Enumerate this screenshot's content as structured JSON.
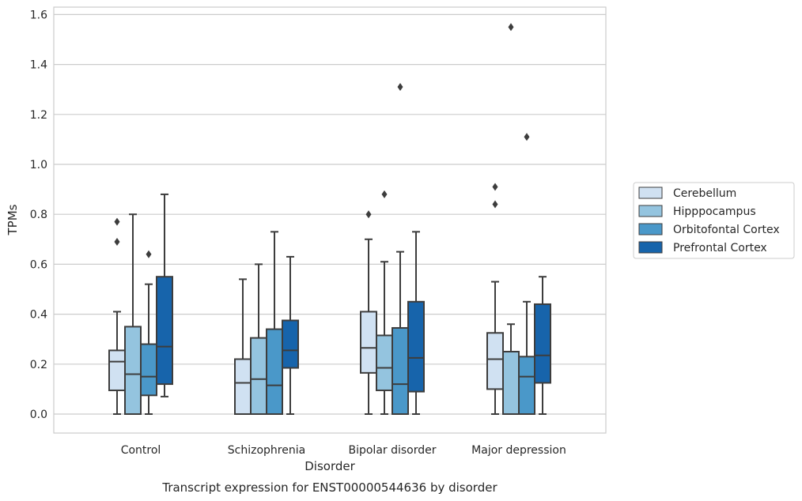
{
  "chart_data": {
    "type": "box",
    "title": "",
    "caption": "Transcript expression for ENST00000544636 by disorder",
    "xlabel": "Disorder",
    "ylabel": "TPMs",
    "ylim": [
      -0.075,
      1.63
    ],
    "yticks": [
      0.0,
      0.2,
      0.4,
      0.6,
      0.8,
      1.0,
      1.2,
      1.4,
      1.6
    ],
    "ytick_labels": [
      "0.0",
      "0.2",
      "0.4",
      "0.6",
      "0.8",
      "1.0",
      "1.2",
      "1.4",
      "1.6"
    ],
    "grid": "horizontal",
    "legend_position": "right",
    "categories": [
      "Control",
      "Schizophrenia",
      "Bipolar disorder",
      "Major depression"
    ],
    "series": [
      {
        "name": "Cerebellum",
        "color": "#d0e1f2",
        "boxes": [
          {
            "whislo": 0.0,
            "q1": 0.095,
            "med": 0.21,
            "q3": 0.255,
            "whishi": 0.41,
            "fliers": [
              0.77,
              0.69
            ]
          },
          {
            "whislo": 0.0,
            "q1": 0.0,
            "med": 0.125,
            "q3": 0.22,
            "whishi": 0.54,
            "fliers": []
          },
          {
            "whislo": 0.0,
            "q1": 0.165,
            "med": 0.265,
            "q3": 0.41,
            "whishi": 0.7,
            "fliers": [
              0.8
            ]
          },
          {
            "whislo": 0.0,
            "q1": 0.1,
            "med": 0.22,
            "q3": 0.325,
            "whishi": 0.53,
            "fliers": [
              0.91,
              0.84
            ]
          }
        ]
      },
      {
        "name": "Hipppocampus",
        "color": "#94c4df",
        "boxes": [
          {
            "whislo": 0.0,
            "q1": 0.0,
            "med": 0.16,
            "q3": 0.35,
            "whishi": 0.8,
            "fliers": []
          },
          {
            "whislo": 0.0,
            "q1": 0.0,
            "med": 0.14,
            "q3": 0.305,
            "whishi": 0.6,
            "fliers": []
          },
          {
            "whislo": 0.0,
            "q1": 0.095,
            "med": 0.185,
            "q3": 0.315,
            "whishi": 0.61,
            "fliers": [
              0.88
            ]
          },
          {
            "whislo": 0.0,
            "q1": 0.0,
            "med": 0.0,
            "q3": 0.25,
            "whishi": 0.36,
            "fliers": [
              1.55
            ]
          }
        ]
      },
      {
        "name": "Orbitofontal Cortex",
        "color": "#4a98c9",
        "boxes": [
          {
            "whislo": 0.0,
            "q1": 0.075,
            "med": 0.15,
            "q3": 0.28,
            "whishi": 0.52,
            "fliers": [
              0.64
            ]
          },
          {
            "whislo": 0.0,
            "q1": 0.0,
            "med": 0.115,
            "q3": 0.34,
            "whishi": 0.73,
            "fliers": []
          },
          {
            "whislo": 0.0,
            "q1": 0.0,
            "med": 0.12,
            "q3": 0.345,
            "whishi": 0.65,
            "fliers": [
              1.31
            ]
          },
          {
            "whislo": 0.0,
            "q1": 0.0,
            "med": 0.15,
            "q3": 0.23,
            "whishi": 0.45,
            "fliers": [
              1.11
            ]
          }
        ]
      },
      {
        "name": "Prefrontal Cortex",
        "color": "#1764ab",
        "boxes": [
          {
            "whislo": 0.07,
            "q1": 0.12,
            "med": 0.27,
            "q3": 0.55,
            "whishi": 0.88,
            "fliers": []
          },
          {
            "whislo": 0.0,
            "q1": 0.185,
            "med": 0.255,
            "q3": 0.375,
            "whishi": 0.63,
            "fliers": []
          },
          {
            "whislo": 0.0,
            "q1": 0.09,
            "med": 0.225,
            "q3": 0.45,
            "whishi": 0.73,
            "fliers": []
          },
          {
            "whislo": 0.0,
            "q1": 0.125,
            "med": 0.235,
            "q3": 0.44,
            "whishi": 0.55,
            "fliers": []
          }
        ]
      }
    ]
  }
}
